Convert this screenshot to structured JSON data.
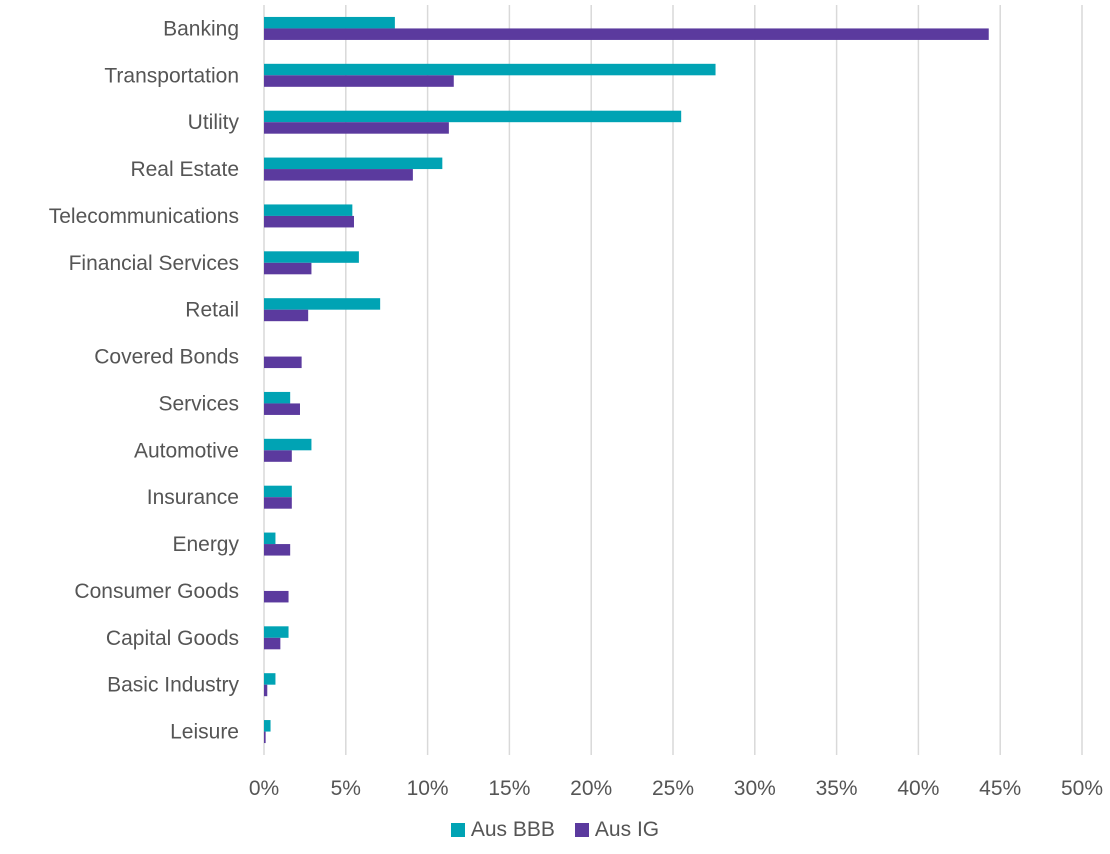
{
  "chart_data": {
    "type": "bar",
    "orientation": "horizontal",
    "categories": [
      "Banking",
      "Transportation",
      "Utility",
      "Real Estate",
      "Telecommunications",
      "Financial Services",
      "Retail",
      "Covered Bonds",
      "Services",
      "Automotive",
      "Insurance",
      "Energy",
      "Consumer Goods",
      "Capital Goods",
      "Basic Industry",
      "Leisure"
    ],
    "series": [
      {
        "name": "Aus BBB",
        "color": "#00A3B4",
        "values": [
          8.0,
          27.6,
          25.5,
          10.9,
          5.4,
          5.8,
          7.1,
          0,
          1.6,
          2.9,
          1.7,
          0.7,
          0,
          1.5,
          0.7,
          0.4
        ]
      },
      {
        "name": "Aus IG",
        "color": "#5B3A9E",
        "values": [
          44.3,
          11.6,
          11.3,
          9.1,
          5.5,
          2.9,
          2.7,
          2.3,
          2.2,
          1.7,
          1.7,
          1.6,
          1.5,
          1.0,
          0.2,
          0.1
        ]
      }
    ],
    "x_ticks": [
      "0%",
      "5%",
      "10%",
      "15%",
      "20%",
      "25%",
      "30%",
      "35%",
      "40%",
      "45%",
      "50%"
    ],
    "xlim": [
      0,
      50
    ],
    "grid": "vertical",
    "legend": "bottom",
    "title": "",
    "xlabel": "",
    "ylabel": ""
  }
}
